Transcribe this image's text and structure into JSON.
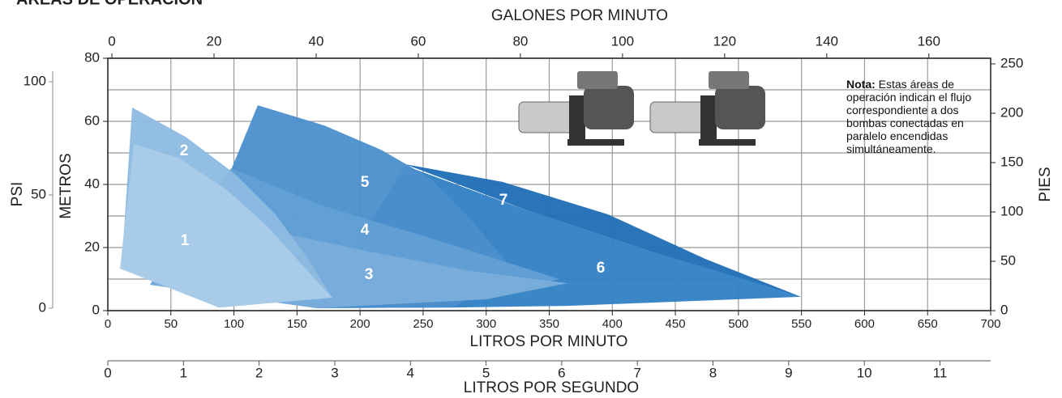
{
  "chart_data": {
    "type": "polygon",
    "title": "ÁREAS DE OPERACIÓN",
    "x_label": "LITROS POR MINUTO",
    "x2_label": "GALONES POR MINUTO",
    "x3_label": "LITROS POR SEGUNDO",
    "y_label": "METROS",
    "y2_label": "PIES",
    "y3_label": "PSI",
    "xlim": [
      0,
      700
    ],
    "xticks": [
      0,
      50,
      100,
      150,
      200,
      250,
      300,
      350,
      400,
      450,
      500,
      550,
      600,
      650,
      700
    ],
    "ylim": [
      0,
      80
    ],
    "yticks": [
      0,
      20,
      40,
      60,
      80
    ],
    "y_minor_grid": [
      10,
      30,
      50,
      70
    ],
    "x2lim": [
      -0.8,
      172.1
    ],
    "x2ticks": [
      0,
      20,
      40,
      60,
      80,
      100,
      120,
      140,
      160
    ],
    "x3lim": [
      0,
      11.67
    ],
    "x3ticks": [
      0,
      1,
      2,
      3,
      4,
      5,
      6,
      7,
      8,
      9,
      10,
      11
    ],
    "y2lim": [
      0,
      255.7
    ],
    "y2ticks": [
      0,
      50,
      100,
      150,
      200,
      250
    ],
    "y3lim": [
      -1.1,
      110.4
    ],
    "y3ticks": [
      0,
      50,
      100
    ],
    "grid": true,
    "series": [
      {
        "name": "1",
        "color": "#a9cbe8",
        "x": [
          9.6,
          20.6,
          55.9,
          94.5,
          126.6,
          155.6,
          178,
          88
        ],
        "y": [
          13.3,
          52.8,
          48.5,
          38.2,
          26.7,
          13.8,
          4.1,
          1.0
        ]
      },
      {
        "name": "2",
        "color": "#8dbae2",
        "x": [
          19.3,
          62.4,
          100.9,
          133,
          158.8,
          178,
          88,
          10.9
        ],
        "y": [
          64.4,
          54.9,
          43.3,
          30.5,
          16.4,
          4.1,
          1.0,
          13.8
        ]
      },
      {
        "name": "3",
        "color": "#79addb",
        "x": [
          33.4,
          120.2,
          203.8,
          287.3,
          364.5,
          300.2,
          165.2
        ],
        "y": [
          8.2,
          26.2,
          19.0,
          12.6,
          8.7,
          3.6,
          0.8
        ]
      },
      {
        "name": "4",
        "color": "#629fd4",
        "x": [
          97.7,
          171.6,
          267.9,
          358,
          300.2,
          165.2,
          33.4
        ],
        "y": [
          45.1,
          33.1,
          21.5,
          10,
          3.6,
          0.8,
          8.2
        ]
      },
      {
        "name": "5",
        "color": "#4b8fcc",
        "x": [
          118.9,
          171.6,
          216.6,
          255.2,
          287.3,
          319.5,
          274.5,
          165.2,
          97.7
        ],
        "y": [
          65.1,
          58.7,
          51.0,
          42.1,
          29.2,
          13.8,
          1.0,
          0.8,
          44.6
        ]
      },
      {
        "name": "6",
        "color": "#2f7fc3",
        "x": [
          235.9,
          332.3,
          428.7,
          505.9,
          549.6,
          364.5,
          274.5,
          165.2
        ],
        "y": [
          45.9,
          31.8,
          19.0,
          10.0,
          4.4,
          1.5,
          1.0,
          0.8
        ]
      },
      {
        "name": "7",
        "color": "#1f6db5",
        "x": [
          235.9,
          313,
          396.6,
          473.7,
          549.6,
          428.7,
          332.3
        ],
        "y": [
          46.4,
          40.8,
          30.5,
          16.4,
          4.4,
          19.0,
          31.8
        ]
      }
    ],
    "note": {
      "label": "Nota:",
      "text": "Estas áreas de operación indican el flujo correspondiente a dos bombas conectadas en paralelo encendidas simultáneamente."
    }
  }
}
